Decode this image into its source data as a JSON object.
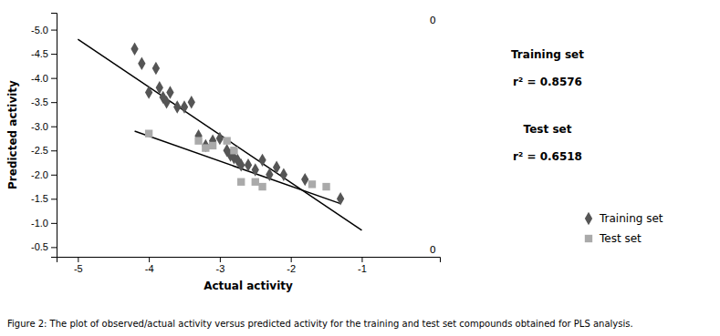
{
  "chart_data": {
    "type": "scatter",
    "caption": "Figure 2: The plot of observed/actual activity versus predicted activity for the training and test set compounds obtained for PLS analysis.",
    "x_label": "Actual activity",
    "y_label": "Predicted activity",
    "xlim": [
      -5.3,
      0.1
    ],
    "ylim": [
      -0.3,
      -5.35
    ],
    "xticks": [
      -5,
      -4,
      -3,
      -2,
      -1
    ],
    "yticks": [
      {
        "value": -5.0,
        "label": "-5.0"
      },
      -4.5,
      {
        "value": -4.0,
        "label": "-4.0"
      },
      -3.5,
      {
        "value": -3.0,
        "label": "-3.0"
      },
      -2.5,
      {
        "value": -2.0,
        "label": "-2.0"
      },
      -1.5,
      {
        "value": -1.0,
        "label": "-1.0"
      },
      -0.5
    ],
    "grid": false,
    "legend": "lower right",
    "series": [
      {
        "name": "Training set",
        "type": "scatter",
        "marker": "diamond",
        "color": "#555555",
        "x": [
          -4.2,
          -4.1,
          -4.0,
          -3.9,
          -3.85,
          -3.8,
          -3.75,
          -3.7,
          -3.6,
          -3.5,
          -3.4,
          -3.3,
          -3.2,
          -3.1,
          -3.0,
          -2.9,
          -2.85,
          -2.8,
          -2.75,
          -2.7,
          -2.6,
          -2.5,
          -2.4,
          -2.3,
          -2.2,
          -2.1,
          -1.8,
          -1.3
        ],
        "values": [
          -4.6,
          -4.3,
          -3.7,
          -4.2,
          -3.8,
          -3.6,
          -3.5,
          -3.7,
          -3.4,
          -3.4,
          -3.5,
          -2.8,
          -2.6,
          -2.7,
          -2.75,
          -2.5,
          -2.4,
          -2.35,
          -2.3,
          -2.2,
          -2.2,
          -2.1,
          -2.3,
          -2.0,
          -2.15,
          -2.0,
          -1.9,
          -1.5
        ]
      },
      {
        "name": "Test set",
        "type": "scatter",
        "marker": "square",
        "color": "#aaaaaa",
        "x": [
          -4.0,
          -3.3,
          -3.2,
          -3.1,
          -2.9,
          -2.8,
          -2.7,
          -2.5,
          -2.4,
          -1.7,
          -1.5
        ],
        "values": [
          -2.85,
          -2.7,
          -2.55,
          -2.6,
          -2.7,
          -2.5,
          -1.85,
          -1.85,
          -1.75,
          -1.8,
          -1.75
        ]
      },
      {
        "type": "line",
        "line_style": "solid",
        "color": "black",
        "x": [
          -5.0,
          -1.0
        ],
        "values": [
          -4.8,
          -0.85
        ]
      },
      {
        "type": "line",
        "line_style": "solid",
        "color": "black",
        "x": [
          -4.2,
          -1.3
        ],
        "values": [
          -2.9,
          -1.4
        ]
      }
    ],
    "annotations": [
      {
        "text": "0",
        "x": 0,
        "y": -0.3
      },
      {
        "text": "0",
        "x": 0.0,
        "y": -5.35
      },
      {
        "text": "Training set"
      },
      {
        "text": "r² = 0.8576"
      },
      {
        "text": "Test set"
      },
      {
        "text": "r² = 0.6518"
      }
    ]
  }
}
